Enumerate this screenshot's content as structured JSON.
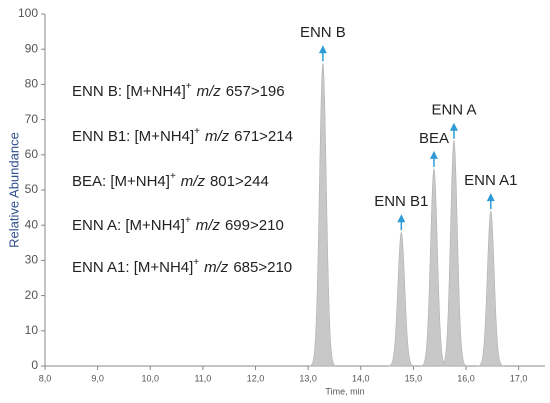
{
  "chart_data": {
    "type": "area",
    "x": [
      13.28,
      14.77,
      15.39,
      15.77,
      16.47
    ],
    "values": [
      86,
      38,
      56,
      64,
      44
    ],
    "peak_labels": [
      "ENN B",
      "ENN B1",
      "BEA",
      "ENN A",
      "ENN A1"
    ],
    "color": "#c8c8c8",
    "arrow_color": "#2e9bd6",
    "xlabel": "Time, min",
    "ylabel": "Relative Abundance",
    "xlim": [
      8.0,
      17.5
    ],
    "ylim": [
      0,
      100
    ],
    "xticks": [
      {
        "value": 8,
        "label": "8,0"
      },
      {
        "value": 9,
        "label": "9,0"
      },
      {
        "value": 10,
        "label": "10,0"
      },
      {
        "value": 11,
        "label": "11,0"
      },
      {
        "value": 12,
        "label": "12,0"
      },
      {
        "value": 13,
        "label": "13,0"
      },
      {
        "value": 14,
        "label": "14,0"
      },
      {
        "value": 15,
        "label": "15,0"
      },
      {
        "value": 16,
        "label": "16,0"
      },
      {
        "value": 17,
        "label": "17,0"
      }
    ],
    "yticks": [
      0,
      10,
      20,
      30,
      40,
      50,
      60,
      70,
      80,
      90,
      100
    ],
    "annotations": [
      {
        "prefix": "ENN B: [M+NH4]",
        "sup": "+",
        "italic": "m/z",
        "suffix": "657>196"
      },
      {
        "prefix": "ENN B1: [M+NH4]",
        "sup": "+",
        "italic": "m/z",
        "suffix": "671>214"
      },
      {
        "prefix": "BEA: [M+NH4]",
        "sup": "+",
        "italic": "m/z",
        "suffix": "801>244"
      },
      {
        "prefix": "ENN A: [M+NH4]",
        "sup": "+",
        "italic": "m/z",
        "suffix": "699>210"
      },
      {
        "prefix": "ENN A1: [M+NH4]",
        "sup": "+",
        "italic": "m/z",
        "suffix": "685>210"
      }
    ]
  }
}
